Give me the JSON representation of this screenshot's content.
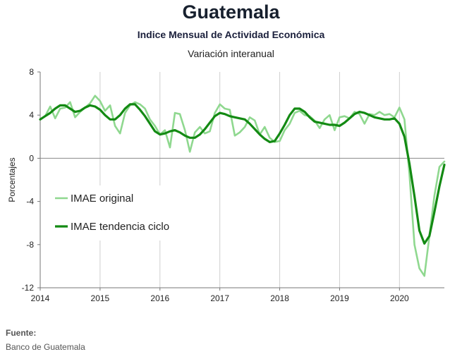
{
  "header": {
    "title": "Guatemala",
    "subtitle": "Indice Mensual de  Actividad Económica",
    "subtitle2": "Variación interanual"
  },
  "source": {
    "label": "Fuente:",
    "text": "Banco de Guatemala"
  },
  "colors": {
    "original": "#8fd88f",
    "trend": "#138a13",
    "grid": "#cfcfcf"
  },
  "chart_data": {
    "type": "line",
    "title": "",
    "xlabel": "",
    "ylabel": "Porcentajes",
    "xlim": [
      2014,
      2020.75
    ],
    "ylim": [
      -12,
      8
    ],
    "y_ticks": [
      8,
      4,
      0,
      -4,
      -8,
      -12
    ],
    "x_ticks": [
      2014,
      2015,
      2016,
      2017,
      2018,
      2019,
      2020
    ],
    "grid": "vertical",
    "legend": "left",
    "series": [
      {
        "name": "IMAE original",
        "x": [
          2014.0,
          2014.083,
          2014.167,
          2014.25,
          2014.333,
          2014.417,
          2014.5,
          2014.583,
          2014.667,
          2014.75,
          2014.833,
          2014.917,
          2015.0,
          2015.083,
          2015.167,
          2015.25,
          2015.333,
          2015.417,
          2015.5,
          2015.583,
          2015.667,
          2015.75,
          2015.833,
          2015.917,
          2016.0,
          2016.083,
          2016.167,
          2016.25,
          2016.333,
          2016.417,
          2016.5,
          2016.583,
          2016.667,
          2016.75,
          2016.833,
          2016.917,
          2017.0,
          2017.083,
          2017.167,
          2017.25,
          2017.333,
          2017.417,
          2017.5,
          2017.583,
          2017.667,
          2017.75,
          2017.833,
          2017.917,
          2018.0,
          2018.083,
          2018.167,
          2018.25,
          2018.333,
          2018.417,
          2018.5,
          2018.583,
          2018.667,
          2018.75,
          2018.833,
          2018.917,
          2019.0,
          2019.083,
          2019.167,
          2019.25,
          2019.333,
          2019.417,
          2019.5,
          2019.583,
          2019.667,
          2019.75,
          2019.833,
          2019.917,
          2020.0,
          2020.083,
          2020.167,
          2020.25,
          2020.333,
          2020.417,
          2020.5,
          2020.583,
          2020.667,
          2020.75
        ],
        "values": [
          3.6,
          3.9,
          4.8,
          3.7,
          4.6,
          4.7,
          5.2,
          3.8,
          4.3,
          4.7,
          5.1,
          5.8,
          5.3,
          4.4,
          4.9,
          3.0,
          2.3,
          4.2,
          4.9,
          5.2,
          5.0,
          4.6,
          3.6,
          3.0,
          2.2,
          2.6,
          1.0,
          4.2,
          4.1,
          2.6,
          0.6,
          2.4,
          2.9,
          2.3,
          2.5,
          4.2,
          5.0,
          4.6,
          4.5,
          2.1,
          2.4,
          2.9,
          3.8,
          3.5,
          2.2,
          2.9,
          1.9,
          1.5,
          1.6,
          2.6,
          3.2,
          4.2,
          4.4,
          4.0,
          3.9,
          3.5,
          2.8,
          3.6,
          4.0,
          2.6,
          3.8,
          3.9,
          3.7,
          4.3,
          4.1,
          3.2,
          4.1,
          4.0,
          4.3,
          4.0,
          4.1,
          3.8,
          4.7,
          3.6,
          -1.5,
          -8.0,
          -10.2,
          -10.9,
          -7.2,
          -3.5,
          -0.8,
          -0.3
        ]
      },
      {
        "name": "IMAE tendencia ciclo",
        "x": [
          2014.0,
          2014.083,
          2014.167,
          2014.25,
          2014.333,
          2014.417,
          2014.5,
          2014.583,
          2014.667,
          2014.75,
          2014.833,
          2014.917,
          2015.0,
          2015.083,
          2015.167,
          2015.25,
          2015.333,
          2015.417,
          2015.5,
          2015.583,
          2015.667,
          2015.75,
          2015.833,
          2015.917,
          2016.0,
          2016.083,
          2016.167,
          2016.25,
          2016.333,
          2016.417,
          2016.5,
          2016.583,
          2016.667,
          2016.75,
          2016.833,
          2016.917,
          2017.0,
          2017.083,
          2017.167,
          2017.25,
          2017.333,
          2017.417,
          2017.5,
          2017.583,
          2017.667,
          2017.75,
          2017.833,
          2017.917,
          2018.0,
          2018.083,
          2018.167,
          2018.25,
          2018.333,
          2018.417,
          2018.5,
          2018.583,
          2018.667,
          2018.75,
          2018.833,
          2018.917,
          2019.0,
          2019.083,
          2019.167,
          2019.25,
          2019.333,
          2019.417,
          2019.5,
          2019.583,
          2019.667,
          2019.75,
          2019.833,
          2019.917,
          2020.0,
          2020.083,
          2020.167,
          2020.25,
          2020.333,
          2020.417,
          2020.5,
          2020.583,
          2020.667,
          2020.75
        ],
        "values": [
          3.6,
          3.9,
          4.2,
          4.6,
          4.9,
          4.9,
          4.6,
          4.3,
          4.4,
          4.7,
          4.9,
          4.8,
          4.5,
          4.0,
          3.6,
          3.6,
          4.0,
          4.6,
          5.0,
          5.0,
          4.5,
          3.9,
          3.2,
          2.5,
          2.2,
          2.3,
          2.5,
          2.6,
          2.4,
          2.1,
          1.9,
          1.9,
          2.2,
          2.7,
          3.3,
          3.9,
          4.2,
          4.1,
          3.9,
          3.8,
          3.7,
          3.6,
          3.2,
          2.7,
          2.2,
          1.8,
          1.5,
          1.6,
          2.3,
          3.1,
          4.0,
          4.6,
          4.6,
          4.3,
          3.8,
          3.4,
          3.3,
          3.2,
          3.1,
          3.1,
          3.0,
          3.3,
          3.7,
          4.1,
          4.3,
          4.2,
          4.0,
          3.8,
          3.7,
          3.6,
          3.6,
          3.7,
          3.2,
          2.0,
          -0.5,
          -3.5,
          -6.7,
          -7.9,
          -7.2,
          -5.0,
          -2.6,
          -0.6
        ]
      }
    ]
  }
}
